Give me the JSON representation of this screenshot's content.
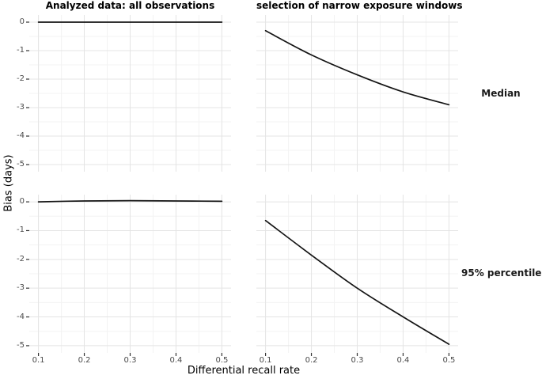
{
  "chart_data": {
    "type": "line",
    "xlabel": "Differential recall rate",
    "ylabel": "Bias (days)",
    "facet_columns": [
      "Analyzed data: all observations",
      "selection of narrow exposure windows"
    ],
    "facet_rows": [
      "Median",
      "95% percentile"
    ],
    "x": [
      0.1,
      0.2,
      0.3,
      0.4,
      0.5
    ],
    "x_tick_labels": [
      "0.1",
      "0.2",
      "0.3",
      "0.4",
      "0.5"
    ],
    "y_ticks": [
      0,
      -1,
      -2,
      -3,
      -4,
      -5
    ],
    "y_tick_labels": [
      "0",
      "-1",
      "-2",
      "-3",
      "-4",
      "-5"
    ],
    "xlim": [
      0.08,
      0.52
    ],
    "ylim": [
      -5.25,
      0.25
    ],
    "x_minor": [
      0.15,
      0.25,
      0.35,
      0.45
    ],
    "y_minor": [
      -0.5,
      -1.5,
      -2.5,
      -3.5,
      -4.5
    ],
    "grid": "major and minor, light gray on white panels",
    "legend": "none",
    "series": [
      {
        "name": "Median - all observations",
        "row": 0,
        "col": 0,
        "values": [
          0,
          0,
          0,
          0,
          0
        ]
      },
      {
        "name": "Median - selection of narrow exposure windows",
        "row": 0,
        "col": 1,
        "values": [
          -0.3,
          -1.15,
          -1.85,
          -2.45,
          -2.9
        ]
      },
      {
        "name": "95% percentile - all observations",
        "row": 1,
        "col": 0,
        "values": [
          0,
          0.03,
          0.04,
          0.03,
          0.02
        ]
      },
      {
        "name": "95% percentile - selection of narrow exposure windows",
        "row": 1,
        "col": 1,
        "values": [
          -0.65,
          -1.85,
          -3.0,
          -4.0,
          -4.95
        ]
      }
    ],
    "colors": {
      "line": "#141414",
      "grid_major": "#e4e4e4",
      "grid_minor": "#f3f3f3",
      "tick": "#333333",
      "tick_label": "#4a4a4a",
      "text": "#000000",
      "background": "#ffffff"
    }
  }
}
